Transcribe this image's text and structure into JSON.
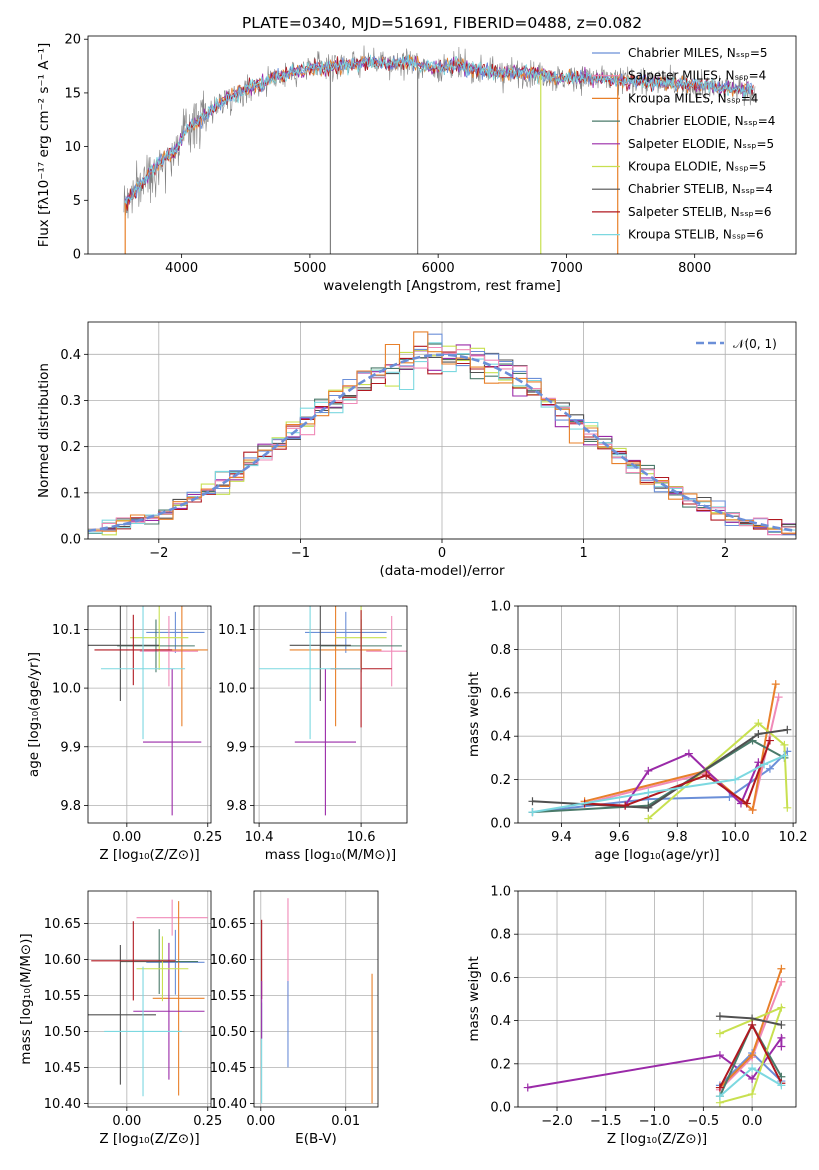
{
  "chart_data": [
    {
      "type": "line",
      "title": "PLATE=0340, MJD=51691, FIBERID=0488, z=0.082",
      "xlabel": "wavelength [Angstrom, rest frame]",
      "ylabel": "Flux [fλ10⁻¹⁷ erg cm⁻² s⁻¹ A⁻¹]",
      "xlim": [
        3270,
        8790
      ],
      "ylim": [
        0,
        20.3
      ],
      "xticks": [
        "4000",
        "5000",
        "6000",
        "7000",
        "8000"
      ],
      "yticks": [
        "0",
        "5",
        "10",
        "15",
        "20"
      ],
      "grid": false,
      "legend_position": "right",
      "continuum": {
        "x": [
          3550,
          3650,
          3750,
          3850,
          3950,
          4050,
          4150,
          4250,
          4350,
          4450,
          4550,
          4650,
          4750,
          4850,
          4950,
          5050,
          5150,
          5250,
          5350,
          5450,
          5550,
          5650,
          5750,
          5850,
          5950,
          6050,
          6150,
          6250,
          6350,
          6450,
          6550,
          6650,
          6750,
          6850,
          6950,
          7050,
          7150,
          7250,
          7350,
          7450,
          7550,
          7650,
          7750,
          7850,
          7950,
          8050,
          8150,
          8250,
          8350,
          8450
        ],
        "y": [
          4.6,
          6.0,
          7.6,
          8.8,
          9.6,
          11.8,
          12.6,
          13.6,
          14.5,
          15.0,
          15.6,
          16.0,
          16.6,
          16.9,
          17.2,
          17.3,
          17.4,
          17.6,
          17.7,
          17.9,
          17.8,
          17.7,
          18.0,
          17.6,
          17.3,
          17.4,
          17.6,
          17.2,
          17.1,
          16.9,
          16.8,
          16.9,
          16.8,
          16.7,
          16.3,
          16.4,
          16.4,
          16.3,
          16.2,
          16.1,
          16.2,
          16.0,
          15.9,
          15.9,
          15.8,
          15.7,
          15.6,
          15.5,
          15.3,
          15.2
        ]
      },
      "series": [
        {
          "name": "Chabrier MILES, N$_{SSP}$=5",
          "color": "#6b8fd8"
        },
        {
          "name": "Salpeter MILES, N$_{SSP}$=4",
          "color": "#f08ab8"
        },
        {
          "name": "Kroupa MILES, N$_{SSP}$=4",
          "color": "#e8802a"
        },
        {
          "name": "Chabrier ELODIE, N$_{SSP}$=4",
          "color": "#4a7a6a"
        },
        {
          "name": "Salpeter ELODIE, N$_{SSP}$=5",
          "color": "#9a2aa8"
        },
        {
          "name": "Kroupa ELODIE, N$_{SSP}$=5",
          "color": "#c8e050"
        },
        {
          "name": "Chabrier STELIB, N$_{SSP}$=4",
          "color": "#505050"
        },
        {
          "name": "Salpeter STELIB, N$_{SSP}$=6",
          "color": "#b01820"
        },
        {
          "name": "Kroupa STELIB, N$_{SSP}$=6",
          "color": "#7cd8e0"
        }
      ]
    },
    {
      "type": "line",
      "xlabel": "(data-model)/error",
      "ylabel": "Normed distribution",
      "xlim": [
        -2.5,
        2.5
      ],
      "ylim": [
        0,
        0.47
      ],
      "xticks": [
        "−2",
        "−1",
        "0",
        "1",
        "2"
      ],
      "yticks": [
        "0.0",
        "0.1",
        "0.2",
        "0.3",
        "0.4"
      ],
      "grid": true,
      "legend_position": "top-right",
      "series": [
        {
          "name": "$\\mathcal{N}(0,1)$",
          "color": "#6b8fd8"
        }
      ]
    },
    {
      "type": "scatter",
      "xlabel": "Z [log$_{10}$(Z/Z$_\\odot$)]",
      "ylabel": "age  [log$_{10}$(age/yr)]",
      "xlim": [
        -0.12,
        0.26
      ],
      "ylim": [
        9.77,
        10.14
      ],
      "xticks": [
        "0.00",
        "0.25"
      ],
      "yticks": [
        "9.8",
        "9.9",
        "10.0",
        "10.1"
      ],
      "grid": true
    },
    {
      "type": "scatter",
      "xlabel": "mass [log$_{10}$(M/M$_\\odot$)]",
      "ylim": [
        9.77,
        10.14
      ],
      "xlim": [
        10.39,
        10.69
      ],
      "xticks": [
        "10.4",
        "10.6"
      ],
      "yticks": [
        "9.8",
        "9.9",
        "10.0",
        "10.1"
      ],
      "grid": true
    },
    {
      "type": "line",
      "xlabel": "age  [log$_{10}$(age/yr)]",
      "ylabel": "mass weight",
      "xlim": [
        9.25,
        10.21
      ],
      "ylim": [
        0,
        1.0
      ],
      "xticks": [
        "9.4",
        "9.6",
        "9.8",
        "10.0",
        "10.2"
      ],
      "yticks": [
        "0.0",
        "0.2",
        "0.4",
        "0.6",
        "0.8",
        "1.0"
      ],
      "grid": true
    },
    {
      "type": "scatter",
      "xlabel": "Z [log$_{10}$(Z/Z$_\\odot$)]",
      "ylabel": "mass [log$_{10}$(M/M$_\\odot$)]",
      "xlim": [
        -0.12,
        0.26
      ],
      "ylim": [
        10.395,
        10.695
      ],
      "xticks": [
        "0.00",
        "0.25"
      ],
      "yticks": [
        "10.40",
        "10.45",
        "10.50",
        "10.55",
        "10.60",
        "10.65"
      ],
      "grid": true
    },
    {
      "type": "scatter",
      "xlabel": "E(B-V)",
      "xlim": [
        -0.0008,
        0.0138
      ],
      "ylim": [
        10.395,
        10.695
      ],
      "xticks": [
        "0.00",
        "0.01"
      ],
      "yticks": [
        "10.40",
        "10.45",
        "10.50",
        "10.55",
        "10.60",
        "10.65"
      ],
      "grid": true
    },
    {
      "type": "line",
      "xlabel": "Z [log$_{10}$(Z/Z$_\\odot$)]",
      "ylabel": "mass weight",
      "xlim": [
        -2.4,
        0.45
      ],
      "ylim": [
        0,
        1.0
      ],
      "xticks": [
        "−2.0",
        "−1.5",
        "−1.0",
        "−0.5",
        "0.0"
      ],
      "yticks": [
        "0.0",
        "0.2",
        "0.4",
        "0.6",
        "0.8",
        "1.0"
      ],
      "grid": true
    }
  ]
}
